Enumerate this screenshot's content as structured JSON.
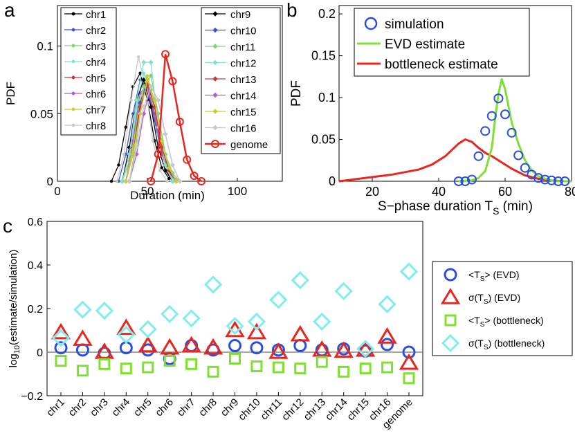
{
  "chart_data": [
    {
      "id": "a",
      "panel_label": "a",
      "type": "line",
      "xlabel": "Duration  (min)",
      "ylabel": "PDF",
      "xlim": [
        0,
        125
      ],
      "ylim": [
        0,
        0.13
      ],
      "xticks": [
        0,
        50,
        100
      ],
      "yticks": [
        0,
        0.05,
        0.1
      ],
      "xtick_labels": [
        "0",
        "50",
        "100"
      ],
      "ytick_labels": [
        "0",
        "0.05",
        "0.1"
      ],
      "legend_left": [
        "chr1",
        "chr2",
        "chr3",
        "chr4",
        "chr5",
        "chr6",
        "chr7",
        "chr8"
      ],
      "legend_right": [
        "chr9",
        "chr10",
        "chr11",
        "chr12",
        "chr13",
        "chr14",
        "chr15",
        "chr16",
        "genome"
      ],
      "series": [
        {
          "name": "chr1",
          "color": "#000000",
          "marker": "dot",
          "x": [
            30,
            34,
            38,
            42,
            46,
            50,
            54,
            58,
            62
          ],
          "y": [
            0.0,
            0.012,
            0.04,
            0.07,
            0.08,
            0.06,
            0.03,
            0.01,
            0.002
          ]
        },
        {
          "name": "chr2",
          "color": "#3a55d8",
          "marker": "dot",
          "x": [
            34,
            38,
            42,
            46,
            50,
            54,
            58,
            62,
            66
          ],
          "y": [
            0.0,
            0.02,
            0.05,
            0.075,
            0.07,
            0.045,
            0.02,
            0.006,
            0.0
          ]
        },
        {
          "name": "chr3",
          "color": "#7fd37a",
          "marker": "dot",
          "x": [
            36,
            40,
            44,
            48,
            52,
            56,
            60,
            64,
            68
          ],
          "y": [
            0.0,
            0.015,
            0.05,
            0.08,
            0.07,
            0.04,
            0.015,
            0.004,
            0.0
          ]
        },
        {
          "name": "chr4",
          "color": "#7de3d0",
          "marker": "dot",
          "x": [
            36,
            40,
            44,
            48,
            52,
            56,
            60,
            64,
            68
          ],
          "y": [
            0.0,
            0.02,
            0.055,
            0.08,
            0.065,
            0.035,
            0.012,
            0.003,
            0.0
          ]
        },
        {
          "name": "chr5",
          "color": "#c43a3a",
          "marker": "dot",
          "x": [
            38,
            42,
            46,
            50,
            54,
            58,
            62,
            66
          ],
          "y": [
            0.0,
            0.025,
            0.06,
            0.07,
            0.05,
            0.022,
            0.007,
            0.0
          ]
        },
        {
          "name": "chr6",
          "color": "#b35acc",
          "marker": "dot",
          "x": [
            38,
            42,
            46,
            50,
            54,
            58,
            62,
            66
          ],
          "y": [
            0.0,
            0.03,
            0.065,
            0.072,
            0.048,
            0.02,
            0.006,
            0.0
          ]
        },
        {
          "name": "chr7",
          "color": "#cccc2e",
          "marker": "dot",
          "x": [
            38,
            42,
            46,
            50,
            54,
            58,
            62,
            66
          ],
          "y": [
            0.0,
            0.025,
            0.06,
            0.078,
            0.055,
            0.025,
            0.008,
            0.0
          ]
        },
        {
          "name": "chr8",
          "color": "#c8c8c8",
          "marker": "dot",
          "x": [
            33,
            37,
            41,
            45,
            49,
            53,
            57,
            61
          ],
          "y": [
            0.0,
            0.02,
            0.06,
            0.092,
            0.07,
            0.03,
            0.008,
            0.0
          ]
        },
        {
          "name": "chr9",
          "color": "#000000",
          "marker": "diamond",
          "x": [
            36,
            40,
            44,
            48,
            52,
            56,
            60,
            64
          ],
          "y": [
            0.0,
            0.025,
            0.06,
            0.075,
            0.055,
            0.025,
            0.008,
            0.0
          ]
        },
        {
          "name": "chr10",
          "color": "#3a55d8",
          "marker": "diamond",
          "x": [
            38,
            42,
            46,
            50,
            54,
            58,
            62,
            66
          ],
          "y": [
            0.0,
            0.02,
            0.058,
            0.075,
            0.06,
            0.03,
            0.01,
            0.0
          ]
        },
        {
          "name": "chr11",
          "color": "#7fd37a",
          "marker": "diamond",
          "x": [
            40,
            44,
            48,
            52,
            56,
            60,
            64,
            68
          ],
          "y": [
            0.0,
            0.03,
            0.07,
            0.078,
            0.05,
            0.02,
            0.006,
            0.0
          ]
        },
        {
          "name": "chr12",
          "color": "#7de3d0",
          "marker": "diamond",
          "x": [
            36,
            40,
            44,
            48,
            52,
            56,
            60,
            64
          ],
          "y": [
            0.0,
            0.02,
            0.06,
            0.088,
            0.088,
            0.04,
            0.012,
            0.0
          ]
        },
        {
          "name": "chr13",
          "color": "#c43a3a",
          "marker": "diamond",
          "x": [
            38,
            42,
            46,
            50,
            54,
            58,
            62,
            66
          ],
          "y": [
            0.0,
            0.02,
            0.055,
            0.072,
            0.055,
            0.025,
            0.008,
            0.0
          ]
        },
        {
          "name": "chr14",
          "color": "#b35acc",
          "marker": "diamond",
          "x": [
            40,
            44,
            48,
            52,
            56,
            60,
            64,
            68
          ],
          "y": [
            0.0,
            0.02,
            0.05,
            0.07,
            0.06,
            0.035,
            0.012,
            0.0
          ]
        },
        {
          "name": "chr15",
          "color": "#cccc2e",
          "marker": "diamond",
          "x": [
            38,
            42,
            46,
            50,
            54,
            58,
            62,
            66
          ],
          "y": [
            0.0,
            0.02,
            0.05,
            0.075,
            0.06,
            0.03,
            0.01,
            0.0
          ]
        },
        {
          "name": "chr16",
          "color": "#c8c8c8",
          "marker": "diamond",
          "x": [
            40,
            44,
            48,
            52,
            56,
            60,
            64,
            68
          ],
          "y": [
            0.0,
            0.025,
            0.055,
            0.07,
            0.06,
            0.035,
            0.012,
            0.0
          ]
        },
        {
          "name": "genome",
          "color": "#e8261e",
          "marker": "circle",
          "x": [
            52,
            56,
            60,
            64,
            68,
            72,
            76,
            80
          ],
          "y": [
            0.0,
            0.02,
            0.094,
            0.074,
            0.044,
            0.016,
            0.004,
            0.0
          ]
        }
      ]
    },
    {
      "id": "b",
      "panel_label": "b",
      "type": "line",
      "xlabel": "S−phase duration T",
      "xlabel_sub": "S",
      "xlabel_suffix": " (min)",
      "ylabel": "PDF",
      "xlim": [
        10,
        80
      ],
      "ylim": [
        0,
        0.21
      ],
      "xticks": [
        20,
        40,
        60,
        80
      ],
      "yticks": [
        0,
        0.05,
        0.1,
        0.15,
        0.2
      ],
      "xtick_labels": [
        "20",
        "40",
        "60",
        "80"
      ],
      "ytick_labels": [
        "0",
        "0.05",
        "0.1",
        "0.15",
        "0.2"
      ],
      "legend": [
        "simulation",
        "EVD estimate",
        "bottleneck estimate"
      ],
      "simulation": {
        "color": "#2a4fe0",
        "x": [
          46,
          48,
          50,
          52,
          54,
          56,
          58,
          60,
          62,
          64,
          66,
          68,
          70,
          72,
          74,
          76,
          78
        ],
        "y": [
          0.0,
          0.0,
          0.002,
          0.03,
          0.06,
          0.078,
          0.099,
          0.08,
          0.058,
          0.031,
          0.016,
          0.008,
          0.004,
          0.002,
          0.001,
          0.0,
          0.0
        ]
      },
      "evd": {
        "color": "#7fe032",
        "x": [
          46,
          50,
          52,
          54,
          56,
          57,
          58,
          59,
          60,
          61,
          62,
          64,
          66,
          68,
          70,
          72,
          74,
          76,
          78,
          80
        ],
        "y": [
          0.0,
          0.001,
          0.004,
          0.012,
          0.04,
          0.075,
          0.105,
          0.122,
          0.11,
          0.09,
          0.07,
          0.045,
          0.025,
          0.013,
          0.006,
          0.003,
          0.001,
          0.0,
          0.0,
          0.0
        ]
      },
      "bottleneck": {
        "color": "#e8261e",
        "x": [
          10,
          14,
          18,
          22,
          26,
          30,
          34,
          38,
          42,
          46,
          48,
          50,
          52,
          54,
          56,
          58,
          62,
          66,
          70,
          74,
          78,
          80
        ],
        "y": [
          0.0,
          0.002,
          0.004,
          0.006,
          0.008,
          0.011,
          0.014,
          0.02,
          0.03,
          0.045,
          0.05,
          0.047,
          0.04,
          0.034,
          0.03,
          0.025,
          0.015,
          0.007,
          0.003,
          0.001,
          0.0,
          0.0
        ]
      }
    },
    {
      "id": "c",
      "panel_label": "c",
      "type": "scatter",
      "ylabel": "log",
      "ylabel_sub": "10",
      "ylabel_suffix": "(estimate/simulation)",
      "ylim": [
        -0.2,
        0.6
      ],
      "yticks": [
        -0.2,
        0,
        0.2,
        0.4,
        0.6
      ],
      "ytick_labels": [
        "−0.2",
        "0",
        "0.2",
        "0.4",
        "0.6"
      ],
      "categories": [
        "chr1",
        "chr2",
        "chr3",
        "chr4",
        "chr5",
        "chr6",
        "chr7",
        "chr8",
        "chr9",
        "chr10",
        "chr11",
        "chr12",
        "chr13",
        "chr14",
        "chr15",
        "chr16",
        "genome"
      ],
      "series": [
        {
          "name": "<T_S> (EVD)",
          "label_pre": "<T",
          "label_sub": "S",
          "label_post": "> (EVD)",
          "marker": "circle",
          "color": "#2a4fe0",
          "values": [
            0.02,
            0.01,
            -0.005,
            0.02,
            0.01,
            -0.03,
            0.03,
            0.01,
            0.03,
            0.02,
            0.01,
            0.03,
            0.01,
            0.015,
            0.005,
            0.035,
            0.0
          ]
        },
        {
          "name": "σ(T_S) (EVD)",
          "label_pre": "σ(T",
          "label_sub": "S",
          "label_post": ") (EVD)",
          "marker": "triangle",
          "color": "#e8261e",
          "values": [
            0.09,
            0.06,
            0.0,
            0.11,
            0.03,
            0.02,
            0.03,
            0.02,
            0.1,
            0.09,
            0.0,
            0.08,
            0.01,
            0.005,
            0.01,
            0.07,
            -0.05
          ]
        },
        {
          "name": "<T_S> (bottleneck)",
          "label_pre": "<T",
          "label_sub": "S",
          "label_post": "> (bottleneck)",
          "marker": "square",
          "color": "#7fe032",
          "values": [
            -0.04,
            -0.085,
            -0.055,
            -0.075,
            -0.07,
            -0.04,
            -0.055,
            -0.09,
            -0.03,
            -0.065,
            -0.07,
            -0.075,
            -0.045,
            -0.09,
            -0.075,
            -0.07,
            -0.12
          ]
        },
        {
          "name": "σ(T_S) (bottleneck)",
          "label_pre": "σ(T",
          "label_sub": "S",
          "label_post": ") (bottleneck)",
          "marker": "diamond",
          "color": "#80ecec",
          "values": [
            0.065,
            0.195,
            0.19,
            0.08,
            0.105,
            0.175,
            0.155,
            0.31,
            0.12,
            0.14,
            0.24,
            0.33,
            0.14,
            0.28,
            0.015,
            0.22,
            0.37
          ]
        }
      ]
    }
  ]
}
